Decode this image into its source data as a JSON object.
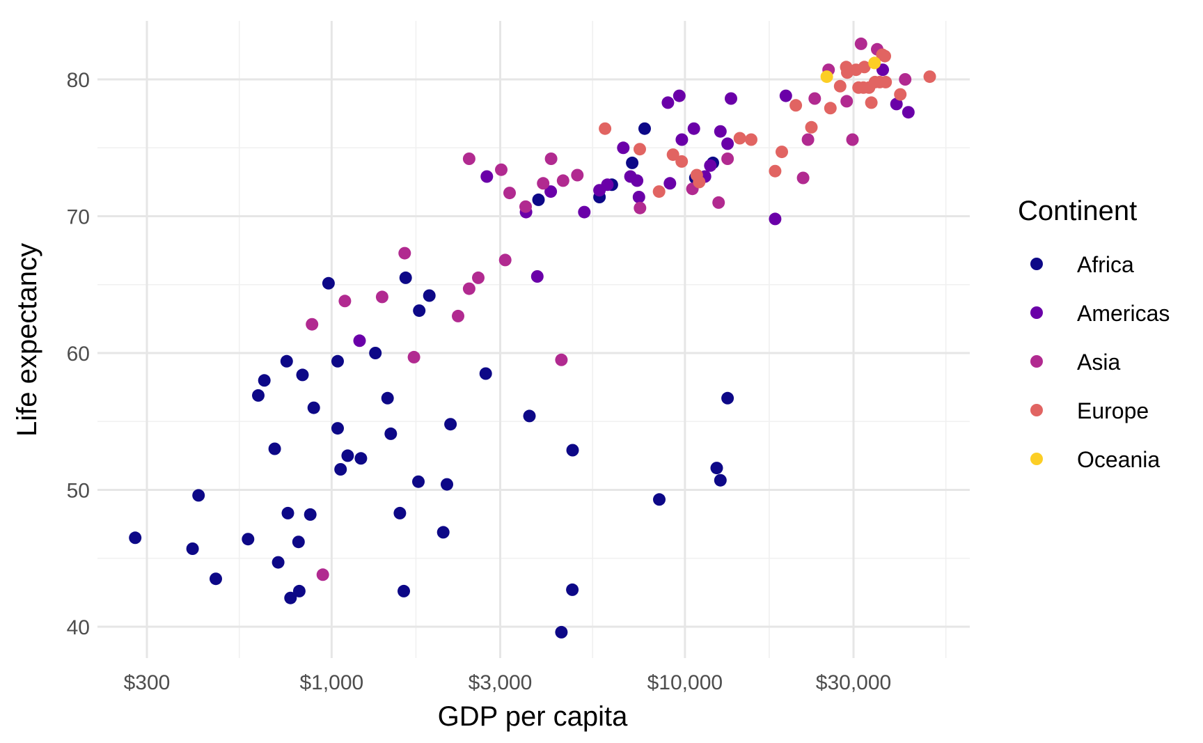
{
  "chart_data": {
    "type": "scatter",
    "xlabel": "GDP per capita",
    "ylabel": "Life expectancy",
    "xscale": "log10",
    "xlim": [
      200,
      55000
    ],
    "ylim": [
      38,
      84.5
    ],
    "x_ticks": [
      300,
      1000,
      3000,
      10000,
      30000
    ],
    "x_tick_labels": [
      "$300",
      "$1,000",
      "$3,000",
      "$10,000",
      "$30,000"
    ],
    "y_ticks": [
      40,
      50,
      60,
      70,
      80
    ],
    "y_tick_labels": [
      "40",
      "50",
      "60",
      "70",
      "80"
    ],
    "grid": true,
    "legend": {
      "title": "Continent",
      "position": "right"
    },
    "series": [
      {
        "name": "Africa",
        "color": "#0d0887",
        "points": [
          [
            278,
            46.5
          ],
          [
            420,
            49.6
          ],
          [
            404,
            45.7
          ],
          [
            470,
            43.5
          ],
          [
            580,
            46.4
          ],
          [
            620,
            56.9
          ],
          [
            645,
            58.0
          ],
          [
            690,
            53.0
          ],
          [
            706,
            44.7
          ],
          [
            746,
            59.4
          ],
          [
            752,
            48.3
          ],
          [
            765,
            42.1
          ],
          [
            806,
            46.2
          ],
          [
            810,
            42.6
          ],
          [
            827,
            58.4
          ],
          [
            870,
            48.2
          ],
          [
            890,
            56.0
          ],
          [
            980,
            65.1
          ],
          [
            1040,
            59.4
          ],
          [
            1040,
            54.5
          ],
          [
            1060,
            51.5
          ],
          [
            1110,
            52.5
          ],
          [
            1210,
            52.3
          ],
          [
            1330,
            60.0
          ],
          [
            1440,
            56.7
          ],
          [
            1470,
            54.1
          ],
          [
            1560,
            48.3
          ],
          [
            1600,
            42.6
          ],
          [
            1620,
            65.5
          ],
          [
            1760,
            50.6
          ],
          [
            1770,
            63.1
          ],
          [
            1890,
            64.2
          ],
          [
            2070,
            46.9
          ],
          [
            2120,
            50.4
          ],
          [
            2170,
            54.8
          ],
          [
            2730,
            58.5
          ],
          [
            3630,
            55.4
          ],
          [
            3850,
            71.2
          ],
          [
            4470,
            39.6
          ],
          [
            4800,
            42.7
          ],
          [
            4810,
            52.9
          ],
          [
            5730,
            71.4
          ],
          [
            6210,
            72.3
          ],
          [
            7090,
            73.9
          ],
          [
            7690,
            76.4
          ],
          [
            8460,
            49.3
          ],
          [
            10700,
            72.8
          ],
          [
            12000,
            73.9
          ],
          [
            12300,
            51.6
          ],
          [
            12600,
            50.7
          ],
          [
            13200,
            56.7
          ]
        ]
      },
      {
        "name": "Americas",
        "color": "#6a00a8",
        "points": [
          [
            1200,
            60.9
          ],
          [
            2750,
            72.9
          ],
          [
            3550,
            70.3
          ],
          [
            3820,
            65.6
          ],
          [
            4170,
            71.8
          ],
          [
            5190,
            70.3
          ],
          [
            5730,
            71.9
          ],
          [
            6030,
            72.3
          ],
          [
            6690,
            75.0
          ],
          [
            7010,
            72.9
          ],
          [
            7320,
            72.6
          ],
          [
            7410,
            71.4
          ],
          [
            8950,
            78.3
          ],
          [
            9070,
            72.4
          ],
          [
            9640,
            78.8
          ],
          [
            9800,
            75.6
          ],
          [
            10600,
            76.4
          ],
          [
            11400,
            72.9
          ],
          [
            11800,
            73.7
          ],
          [
            12600,
            76.2
          ],
          [
            13200,
            75.3
          ],
          [
            13500,
            78.6
          ],
          [
            18000,
            69.8
          ],
          [
            19300,
            78.8
          ],
          [
            36300,
            80.7
          ],
          [
            39700,
            78.2
          ],
          [
            42900,
            77.6
          ]
        ]
      },
      {
        "name": "Asia",
        "color": "#b12a90",
        "points": [
          [
            944,
            43.8
          ],
          [
            880,
            62.1
          ],
          [
            1090,
            63.8
          ],
          [
            1390,
            64.1
          ],
          [
            1610,
            67.3
          ],
          [
            1710,
            59.7
          ],
          [
            2280,
            62.7
          ],
          [
            2450,
            74.2
          ],
          [
            2450,
            64.7
          ],
          [
            2600,
            65.5
          ],
          [
            3020,
            73.4
          ],
          [
            3100,
            66.8
          ],
          [
            3190,
            71.7
          ],
          [
            3540,
            70.7
          ],
          [
            3970,
            72.4
          ],
          [
            4180,
            74.2
          ],
          [
            4470,
            59.5
          ],
          [
            4520,
            72.6
          ],
          [
            4960,
            73.0
          ],
          [
            7460,
            70.6
          ],
          [
            10500,
            72.0
          ],
          [
            12450,
            71.0
          ],
          [
            13200,
            74.2
          ],
          [
            21600,
            72.8
          ],
          [
            22300,
            75.6
          ],
          [
            23300,
            78.6
          ],
          [
            25500,
            80.7
          ],
          [
            28700,
            78.4
          ],
          [
            29800,
            75.6
          ],
          [
            31500,
            82.6
          ],
          [
            35000,
            82.2
          ],
          [
            42000,
            80.0
          ]
        ]
      },
      {
        "name": "Europe",
        "color": "#e16462",
        "points": [
          [
            5940,
            76.4
          ],
          [
            7450,
            74.9
          ],
          [
            8450,
            71.8
          ],
          [
            9250,
            74.5
          ],
          [
            9790,
            74.0
          ],
          [
            10800,
            73.0
          ],
          [
            10970,
            72.5
          ],
          [
            14300,
            75.7
          ],
          [
            15400,
            75.6
          ],
          [
            18000,
            73.3
          ],
          [
            18800,
            74.7
          ],
          [
            20600,
            78.1
          ],
          [
            22800,
            76.5
          ],
          [
            25800,
            77.9
          ],
          [
            27500,
            79.5
          ],
          [
            28600,
            80.9
          ],
          [
            28800,
            80.5
          ],
          [
            30500,
            80.7
          ],
          [
            31000,
            79.4
          ],
          [
            32000,
            79.4
          ],
          [
            32200,
            80.9
          ],
          [
            33200,
            79.4
          ],
          [
            33700,
            78.3
          ],
          [
            34500,
            79.8
          ],
          [
            35600,
            79.8
          ],
          [
            36200,
            81.8
          ],
          [
            36800,
            81.7
          ],
          [
            37000,
            79.8
          ],
          [
            40700,
            78.9
          ],
          [
            49300,
            80.2
          ]
        ]
      },
      {
        "name": "Oceania",
        "color": "#fcce25",
        "points": [
          [
            25200,
            80.2
          ],
          [
            34400,
            81.2
          ]
        ]
      }
    ]
  }
}
